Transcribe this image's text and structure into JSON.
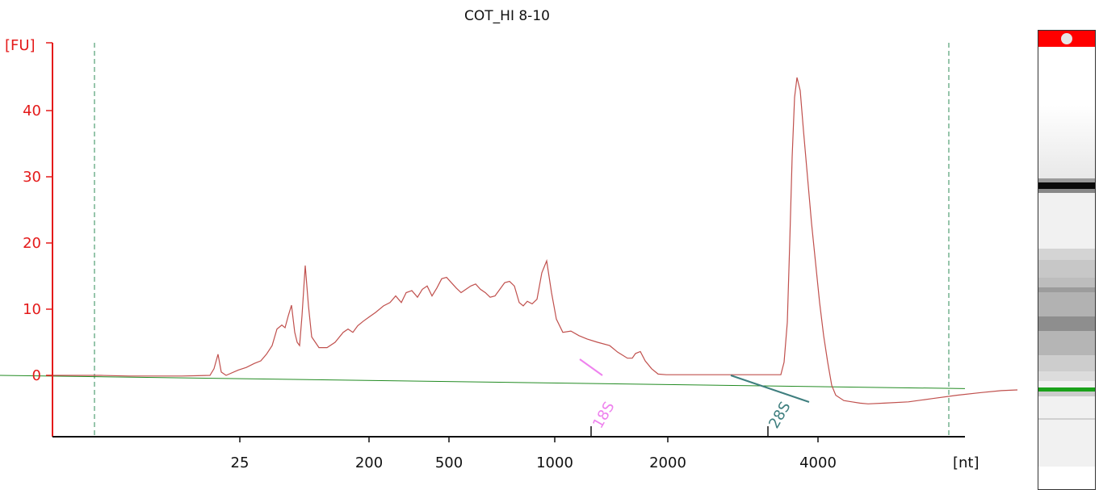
{
  "chart_data": {
    "type": "line",
    "title": "COT_HI 8-10",
    "ylabel": "[FU]",
    "xlabel": "[nt]",
    "x_scale": "ladder-calibrated (nonlinear)",
    "ylim": [
      -9.5,
      51
    ],
    "y_ticks": [
      0,
      10,
      20,
      30,
      40
    ],
    "x_ticks": [
      "25",
      "200",
      "500",
      "1000",
      "2000",
      "4000"
    ],
    "markers": [
      {
        "label": "18S",
        "color": "#ee82ee"
      },
      {
        "label": "28S",
        "color": "#3f7f7f"
      }
    ],
    "colors": {
      "axis": "#e41a1a",
      "trace": "#c0504d",
      "baseline": "#228b22",
      "guide": "#2e8b57"
    },
    "series": [
      {
        "values": [
          [
            0,
            0
          ],
          [
            40,
            0
          ],
          [
            55,
            0
          ],
          [
            60,
            0
          ],
          [
            95,
            -0.1
          ],
          [
            110,
            -0.1
          ],
          [
            140,
            -0.1
          ],
          [
            160,
            -0.1
          ],
          [
            180,
            -0.05
          ],
          [
            195,
            0
          ],
          [
            200,
            1
          ],
          [
            205,
            3.2
          ],
          [
            209,
            0.5
          ],
          [
            215,
            0
          ],
          [
            230,
            0.8
          ],
          [
            240,
            1.2
          ],
          [
            250,
            1.8
          ],
          [
            258,
            2.2
          ],
          [
            265,
            3.2
          ],
          [
            272,
            4.5
          ],
          [
            278,
            7
          ],
          [
            284,
            7.6
          ],
          [
            288,
            7.2
          ],
          [
            292,
            9
          ],
          [
            296,
            10.6
          ],
          [
            300,
            6.5
          ],
          [
            303,
            5
          ],
          [
            306,
            4.5
          ],
          [
            309,
            9
          ],
          [
            313,
            16.6
          ],
          [
            317,
            10.5
          ],
          [
            321,
            5.8
          ],
          [
            330,
            4.2
          ],
          [
            340,
            4.2
          ],
          [
            350,
            5
          ],
          [
            360,
            6.5
          ],
          [
            366,
            7
          ],
          [
            372,
            6.5
          ],
          [
            378,
            7.5
          ],
          [
            385,
            8.2
          ],
          [
            392,
            8.8
          ],
          [
            400,
            9.5
          ],
          [
            410,
            10.5
          ],
          [
            418,
            11
          ],
          [
            425,
            12
          ],
          [
            432,
            11
          ],
          [
            438,
            12.5
          ],
          [
            445,
            12.8
          ],
          [
            452,
            11.8
          ],
          [
            458,
            13
          ],
          [
            464,
            13.5
          ],
          [
            470,
            12
          ],
          [
            476,
            13.2
          ],
          [
            482,
            14.6
          ],
          [
            488,
            14.8
          ],
          [
            494,
            14
          ],
          [
            500,
            13.2
          ],
          [
            506,
            12.5
          ],
          [
            512,
            13
          ],
          [
            518,
            13.5
          ],
          [
            524,
            13.8
          ],
          [
            530,
            13
          ],
          [
            536,
            12.5
          ],
          [
            542,
            11.8
          ],
          [
            548,
            12
          ],
          [
            554,
            13
          ],
          [
            560,
            14
          ],
          [
            566,
            14.2
          ],
          [
            572,
            13.5
          ],
          [
            578,
            11
          ],
          [
            583,
            10.5
          ],
          [
            588,
            11.2
          ],
          [
            594,
            10.8
          ],
          [
            600,
            11.5
          ],
          [
            606,
            15.5
          ],
          [
            612,
            17.3
          ],
          [
            618,
            12.5
          ],
          [
            624,
            8.5
          ],
          [
            632,
            6.5
          ],
          [
            642,
            6.7
          ],
          [
            652,
            6
          ],
          [
            662,
            5.5
          ],
          [
            675,
            5
          ],
          [
            690,
            4.5
          ],
          [
            700,
            3.5
          ],
          [
            712,
            2.6
          ],
          [
            718,
            2.6
          ],
          [
            722,
            3.3
          ],
          [
            728,
            3.6
          ],
          [
            734,
            2.2
          ],
          [
            742,
            1
          ],
          [
            750,
            0.2
          ],
          [
            760,
            0.1
          ],
          [
            780,
            0.1
          ],
          [
            800,
            0.1
          ],
          [
            820,
            0.1
          ],
          [
            840,
            0.1
          ],
          [
            860,
            0.1
          ],
          [
            880,
            0.1
          ],
          [
            895,
            0.1
          ],
          [
            902,
            0.1
          ],
          [
            906,
            2
          ],
          [
            910,
            8
          ],
          [
            913,
            20
          ],
          [
            916,
            33
          ],
          [
            919,
            42
          ],
          [
            922,
            45
          ],
          [
            926,
            43
          ],
          [
            930,
            37
          ],
          [
            935,
            30
          ],
          [
            940,
            23
          ],
          [
            945,
            17
          ],
          [
            950,
            11
          ],
          [
            955,
            6
          ],
          [
            960,
            2
          ],
          [
            965,
            -1.5
          ],
          [
            970,
            -3
          ],
          [
            980,
            -3.8
          ],
          [
            990,
            -4
          ],
          [
            1000,
            -4.2
          ],
          [
            1010,
            -4.3
          ],
          [
            1030,
            -4.2
          ],
          [
            1060,
            -4
          ],
          [
            1090,
            -3.5
          ],
          [
            1120,
            -3
          ],
          [
            1150,
            -2.6
          ],
          [
            1175,
            -2.3
          ],
          [
            1195,
            -2.2
          ]
        ]
      }
    ]
  }
}
